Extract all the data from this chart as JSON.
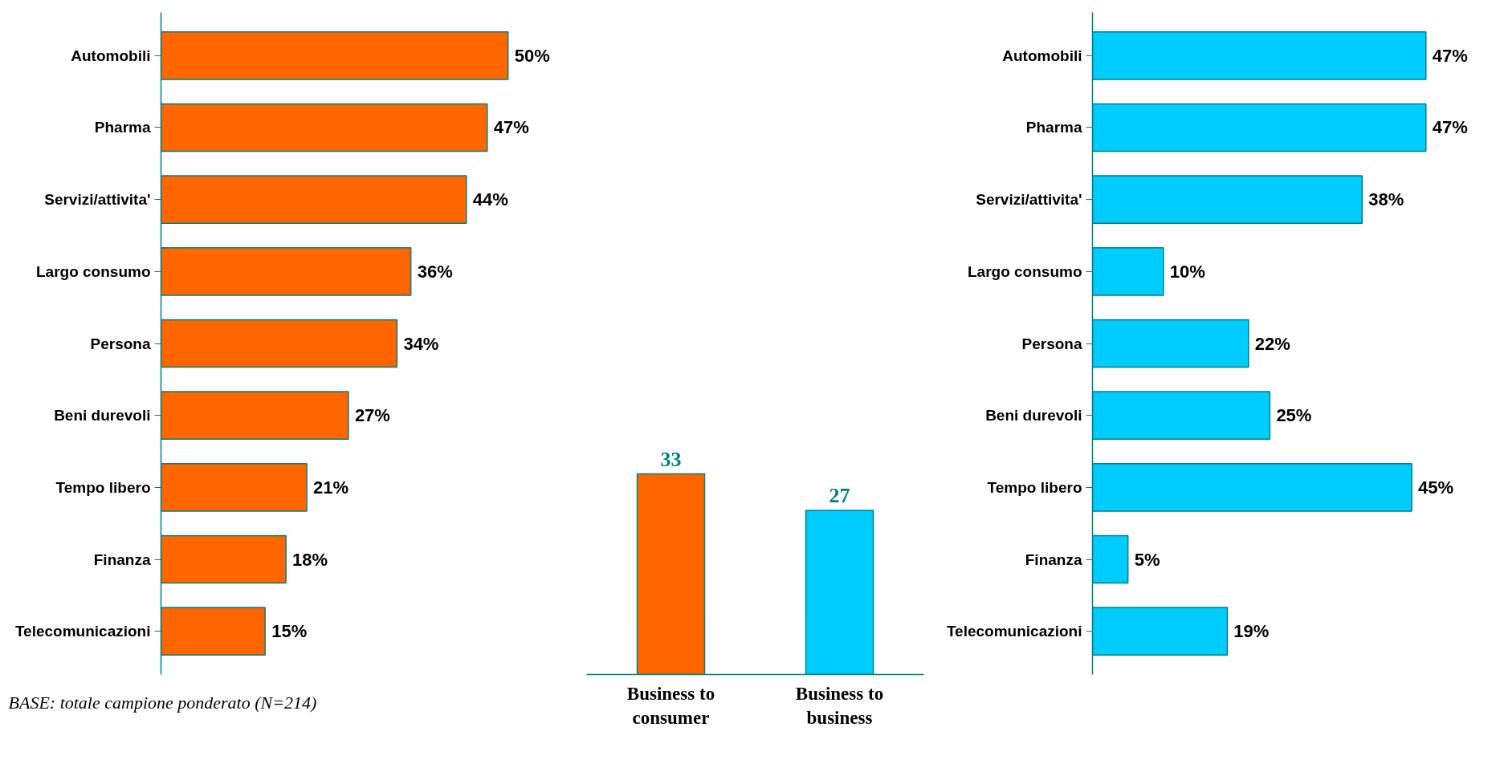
{
  "chart_data": [
    {
      "type": "bar",
      "orientation": "horizontal",
      "categories": [
        "Automobili",
        "Pharma",
        "Servizi/attivita'",
        "Largo consumo",
        "Persona",
        "Beni durevoli",
        "Tempo libero",
        "Finanza",
        "Telecomunicazioni"
      ],
      "values": [
        50,
        47,
        44,
        36,
        34,
        27,
        21,
        18,
        15
      ],
      "value_labels": [
        "50%",
        "47%",
        "44%",
        "36%",
        "34%",
        "27%",
        "21%",
        "18%",
        "15%"
      ],
      "color": "#ff6600",
      "annotations": [
        "BASE: totale campione ponderato (N=214)"
      ]
    },
    {
      "type": "bar",
      "categories": [
        "Business to consumer",
        "Business to business"
      ],
      "values": [
        33,
        27
      ],
      "colors": [
        "#ff6600",
        "#00ccff"
      ],
      "data_labels": true
    },
    {
      "type": "bar",
      "orientation": "horizontal",
      "categories": [
        "Automobili",
        "Pharma",
        "Servizi/attivita'",
        "Largo consumo",
        "Persona",
        "Beni durevoli",
        "Tempo libero",
        "Finanza",
        "Telecomunicazioni"
      ],
      "values": [
        47,
        47,
        38,
        10,
        22,
        25,
        45,
        5,
        19
      ],
      "value_labels": [
        "47%",
        "47%",
        "38%",
        "10%",
        "22%",
        "25%",
        "45%",
        "5%",
        "19%"
      ],
      "color": "#00ccff"
    }
  ]
}
